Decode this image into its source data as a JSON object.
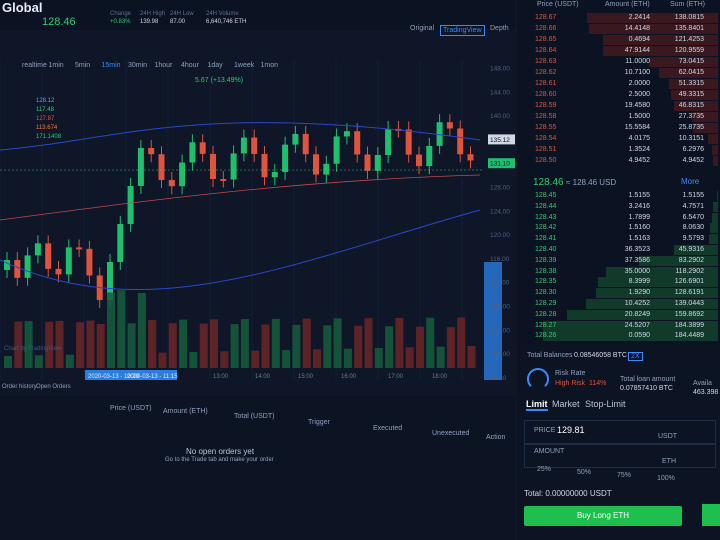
{
  "header": {
    "brand": "Global",
    "price": "128.46",
    "stats": [
      {
        "label": "Change",
        "value": "+0.83%"
      },
      {
        "label": "24H High",
        "value": "139.98"
      },
      {
        "label": "24H Low",
        "value": "87.00"
      },
      {
        "label": "24H Volume",
        "value": "6,640,746 ETH"
      }
    ]
  },
  "chart_tabs": [
    "Original",
    "TradingView",
    "Depth"
  ],
  "timeframes": [
    "realtime",
    "1min",
    "5min",
    "15min",
    "30min",
    "1hour",
    "4hour",
    "1day",
    "1week",
    "1mon"
  ],
  "indicator": "5.67 (+13.49%)",
  "legend": [
    "128.12",
    "117.48",
    "127.87",
    "113.674",
    "171.1408"
  ],
  "watermark": "Chart by TradingView",
  "price_axis": [
    "148.00",
    "144.00",
    "140.00",
    "135.12",
    "131.10",
    "128.00",
    "124.00",
    "120.00",
    "116.00",
    "112.00",
    "108.00",
    "104.00",
    "100.00",
    "96.60"
  ],
  "time_axis": [
    "2020-03-13 - 10:20",
    "2020-03-13 - 11:15",
    "13:00",
    "14:00",
    "15:00",
    "16:00",
    "17:00",
    "18:00"
  ],
  "orders": {
    "tabs": [
      "Order history",
      "Open Orders"
    ],
    "columns": [
      "Price (USDT)",
      "Amount (ETH)",
      "Total (USDT)",
      "Trigger",
      "Executed",
      "Unexecuted",
      "Action"
    ],
    "empty_title": "No open orders yet",
    "empty_hint": "Go to the Trade tab and make your order"
  },
  "order_book": {
    "columns": [
      "Price (USDT)",
      "Amount (ETH)",
      "Sum (ETH)"
    ],
    "asks": [
      [
        "128.67",
        "2.2414",
        "138.0815"
      ],
      [
        "128.66",
        "14.4148",
        "135.8401"
      ],
      [
        "128.65",
        "0.4694",
        "121.4253"
      ],
      [
        "128.64",
        "47.9144",
        "120.9559"
      ],
      [
        "128.63",
        "11.0000",
        "73.0415"
      ],
      [
        "128.62",
        "10.7100",
        "62.0415"
      ],
      [
        "128.61",
        "2.0000",
        "51.3315"
      ],
      [
        "128.60",
        "2.5000",
        "49.3315"
      ],
      [
        "128.59",
        "19.4580",
        "46.8315"
      ],
      [
        "128.58",
        "1.5000",
        "27.3735"
      ],
      [
        "128.55",
        "15.5584",
        "25.8735"
      ],
      [
        "128.54",
        "4.0175",
        "10.3151"
      ],
      [
        "128.51",
        "1.3524",
        "6.2976"
      ],
      [
        "128.50",
        "4.9452",
        "4.9452"
      ]
    ],
    "last_price": "128.46",
    "last_usd": "≈ 128.46 USD",
    "more": "More",
    "bids": [
      [
        "128.45",
        "1.5155",
        "1.5155"
      ],
      [
        "128.44",
        "3.2416",
        "4.7571"
      ],
      [
        "128.43",
        "1.7899",
        "6.5470"
      ],
      [
        "128.42",
        "1.5160",
        "8.0630"
      ],
      [
        "128.41",
        "1.5163",
        "9.5793"
      ],
      [
        "128.40",
        "36.3523",
        "45.9316"
      ],
      [
        "128.39",
        "37.3586",
        "83.2902"
      ],
      [
        "128.38",
        "35.0000",
        "118.2902"
      ],
      [
        "128.35",
        "8.3999",
        "126.6901"
      ],
      [
        "128.30",
        "1.9290",
        "128.6191"
      ],
      [
        "128.29",
        "10.4252",
        "139.0443"
      ],
      [
        "128.28",
        "20.8249",
        "159.8692"
      ],
      [
        "128.27",
        "24.5207",
        "184.3899"
      ],
      [
        "128.26",
        "0.0590",
        "184.4489"
      ]
    ]
  },
  "account": {
    "balances_label": "Total Balances",
    "balances": "0.08546058 BTC",
    "leverage": "2X",
    "risk_label": "Risk Rate",
    "risk_level": "High Risk",
    "risk_value": "114%",
    "loan_label": "Total loan amount",
    "loan": "0.07857410 BTC",
    "avail_label": "Availa",
    "avail": "463.398"
  },
  "trade": {
    "tabs": [
      "Limit",
      "Market",
      "Stop-Limit"
    ],
    "price_label": "PRICE",
    "price": "129.81",
    "price_unit": "USDT",
    "amount_label": "AMOUNT",
    "amount_unit": "ETH",
    "percents": [
      "25%",
      "50%",
      "75%",
      "100%"
    ],
    "total": "Total: 0.00000000 USDT",
    "button": "Buy Long ETH"
  }
}
